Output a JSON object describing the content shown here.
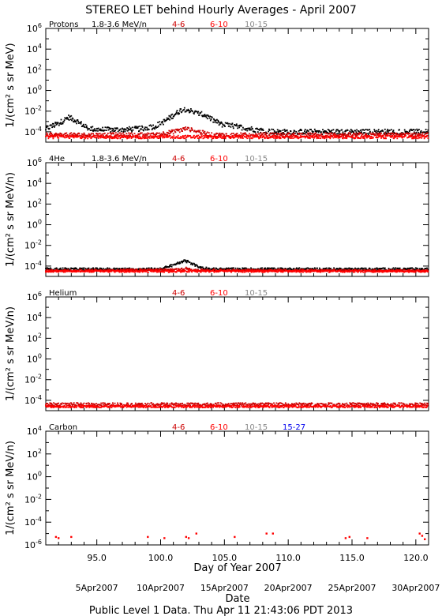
{
  "title": "STEREO LET behind Hourly Averages - April 2007",
  "footer": "Public Level 1 Data. Thu Apr 11 21:43:06 PDT 2013",
  "x_axis": {
    "label": "Day of Year 2007",
    "sublabel": "Date",
    "range": [
      91,
      121
    ],
    "ticks": [
      95,
      100,
      105,
      110,
      115,
      120
    ],
    "tick_labels": [
      "95.0",
      "100.0",
      "105.0",
      "110.0",
      "115.0",
      "120.0"
    ],
    "date_ticks": [
      {
        "day": 95,
        "label": "5Apr2007"
      },
      {
        "day": 100,
        "label": "10Apr2007"
      },
      {
        "day": 105,
        "label": "15Apr2007"
      },
      {
        "day": 110,
        "label": "20Apr2007"
      },
      {
        "day": 115,
        "label": "25Apr2007"
      },
      {
        "day": 120,
        "label": "30Apr2007"
      }
    ]
  },
  "colors": {
    "black": "#000000",
    "red_dark": "#cc0000",
    "red": "#ff0000",
    "gray": "#888888",
    "blue": "#0000ee"
  },
  "chart_data": [
    {
      "type": "scatter",
      "species": "Protons",
      "ylabel": "1/(cm² s sr MeV)",
      "ylog": true,
      "ylim_exp": [
        -5,
        6
      ],
      "yticks_exp": [
        -4,
        -2,
        0,
        2,
        4,
        6
      ],
      "legend": [
        {
          "label": "1.8-3.6 MeV/n",
          "color": "black"
        },
        {
          "label": "4-6",
          "color": "red_dark"
        },
        {
          "label": "6-10",
          "color": "red"
        },
        {
          "label": "10-15",
          "color": "gray"
        }
      ],
      "series": [
        {
          "name": "1.8-3.6 MeV/n",
          "color": "black",
          "noise": 0.25,
          "points": [
            [
              91.0,
              -3.7
            ],
            [
              92.0,
              -3.2
            ],
            [
              92.8,
              -2.6
            ],
            [
              93.5,
              -3.0
            ],
            [
              94.2,
              -3.6
            ],
            [
              95.0,
              -3.8
            ],
            [
              97.0,
              -3.8
            ],
            [
              98.5,
              -3.7
            ],
            [
              99.5,
              -3.5
            ],
            [
              100.3,
              -3.0
            ],
            [
              101.0,
              -2.4
            ],
            [
              101.6,
              -1.9
            ],
            [
              102.0,
              -1.8
            ],
            [
              102.8,
              -2.2
            ],
            [
              103.5,
              -2.4
            ],
            [
              104.0,
              -2.8
            ],
            [
              104.8,
              -3.3
            ],
            [
              105.5,
              -3.4
            ],
            [
              106.5,
              -3.6
            ],
            [
              107.5,
              -3.8
            ],
            [
              109.0,
              -4.0
            ],
            [
              110.0,
              -4.0
            ],
            [
              121.0,
              -4.0
            ]
          ]
        },
        {
          "name": "4-6",
          "color": "red_dark",
          "noise": 0.2,
          "points": [
            [
              91.0,
              -4.3
            ],
            [
              99.5,
              -4.3
            ],
            [
              101.0,
              -4.0
            ],
            [
              102.0,
              -3.7
            ],
            [
              103.0,
              -4.0
            ],
            [
              104.0,
              -4.3
            ],
            [
              121.0,
              -4.3
            ]
          ]
        },
        {
          "name": "6-10",
          "color": "red",
          "noise": 0.15,
          "points": [
            [
              91.0,
              -4.5
            ],
            [
              121.0,
              -4.5
            ]
          ]
        }
      ]
    },
    {
      "type": "scatter",
      "species": "4He",
      "ylabel": "1/(cm² s sr MeV/n)",
      "ylog": true,
      "ylim_exp": [
        -5,
        6
      ],
      "yticks_exp": [
        -4,
        -2,
        0,
        2,
        4,
        6
      ],
      "legend": [
        {
          "label": "1.8-3.6 MeV/n",
          "color": "black"
        },
        {
          "label": "4-6",
          "color": "red_dark"
        },
        {
          "label": "6-10",
          "color": "red"
        },
        {
          "label": "10-15",
          "color": "gray"
        }
      ],
      "series": [
        {
          "name": "1.8-3.6 MeV/n",
          "color": "black",
          "noise": 0.12,
          "points": [
            [
              91.0,
              -4.3
            ],
            [
              100.0,
              -4.3
            ],
            [
              101.0,
              -3.9
            ],
            [
              101.8,
              -3.5
            ],
            [
              102.2,
              -3.6
            ],
            [
              103.0,
              -4.1
            ],
            [
              104.0,
              -4.3
            ],
            [
              121.0,
              -4.3
            ]
          ]
        },
        {
          "name": "4-6",
          "color": "red_dark",
          "noise": 0.1,
          "points": [
            [
              91.0,
              -4.45
            ],
            [
              101.5,
              -4.35
            ],
            [
              102.0,
              -4.2
            ],
            [
              102.6,
              -4.4
            ],
            [
              121.0,
              -4.45
            ]
          ]
        },
        {
          "name": "6-10",
          "color": "red",
          "noise": 0.1,
          "points": [
            [
              91.0,
              -4.5
            ],
            [
              121.0,
              -4.5
            ]
          ]
        }
      ]
    },
    {
      "type": "scatter",
      "species": "Helium",
      "ylabel": "1/(cm² s sr MeV/n)",
      "ylog": true,
      "ylim_exp": [
        -5,
        6
      ],
      "yticks_exp": [
        -4,
        -2,
        0,
        2,
        4,
        6
      ],
      "legend": [
        {
          "label": "4-6",
          "color": "red_dark"
        },
        {
          "label": "6-10",
          "color": "red"
        },
        {
          "label": "10-15",
          "color": "gray"
        }
      ],
      "series": [
        {
          "name": "4-6",
          "color": "red_dark",
          "noise": 0.15,
          "points": [
            [
              91.0,
              -4.4
            ],
            [
              121.0,
              -4.4
            ]
          ]
        },
        {
          "name": "6-10",
          "color": "red",
          "noise": 0.1,
          "points": [
            [
              91.0,
              -4.6
            ],
            [
              121.0,
              -4.6
            ]
          ]
        }
      ]
    },
    {
      "type": "scatter",
      "species": "Carbon",
      "ylabel": "1/(cm² s sr MeV/n)",
      "ylog": true,
      "ylim_exp": [
        -6,
        4
      ],
      "yticks_exp": [
        -6,
        -4,
        -2,
        0,
        2,
        4
      ],
      "legend": [
        {
          "label": "4-6",
          "color": "red_dark"
        },
        {
          "label": "6-10",
          "color": "red"
        },
        {
          "label": "10-15",
          "color": "gray"
        },
        {
          "label": "15-27",
          "color": "blue"
        }
      ],
      "scatter_points": [
        [
          91.8,
          -5.3
        ],
        [
          92.0,
          -5.4
        ],
        [
          93.0,
          -5.3
        ],
        [
          99.0,
          -5.3
        ],
        [
          100.3,
          -5.4
        ],
        [
          102.0,
          -5.3
        ],
        [
          102.2,
          -5.4
        ],
        [
          102.8,
          -5.0
        ],
        [
          105.8,
          -5.3
        ],
        [
          108.3,
          -5.0
        ],
        [
          108.8,
          -5.0
        ],
        [
          114.5,
          -5.4
        ],
        [
          114.8,
          -5.3
        ],
        [
          116.2,
          -5.4
        ],
        [
          120.3,
          -5.0
        ],
        [
          120.5,
          -5.2
        ],
        [
          120.7,
          -5.5
        ]
      ],
      "scatter_color": "red"
    }
  ]
}
